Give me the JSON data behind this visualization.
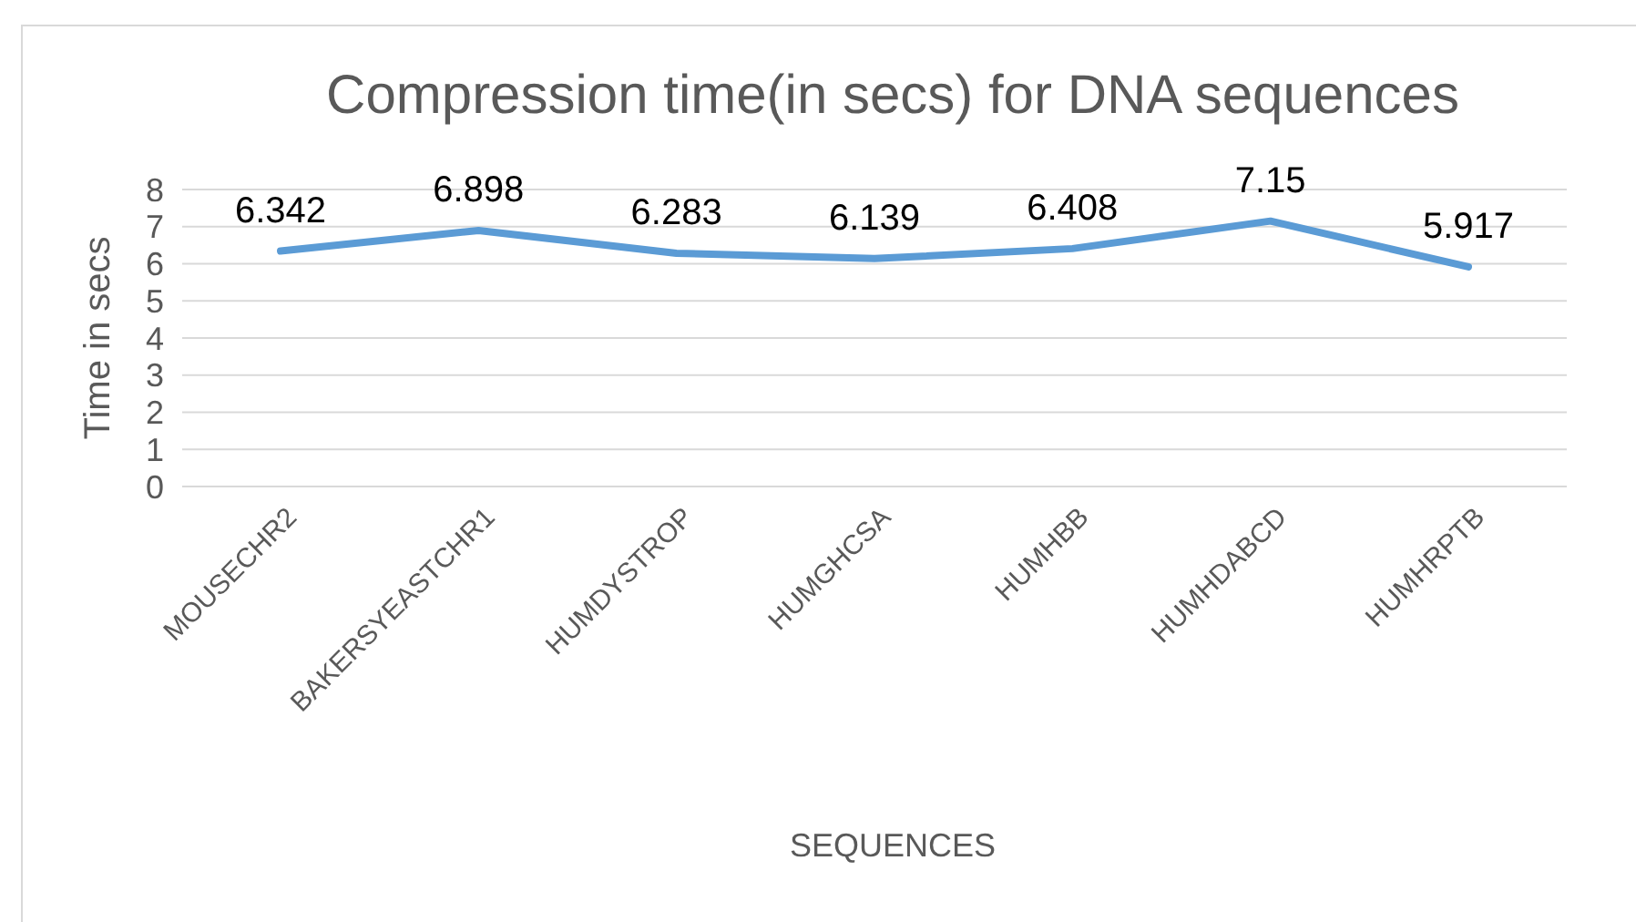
{
  "chart_data": {
    "type": "line",
    "title": "Compression time(in secs) for DNA sequences",
    "xlabel": "SEQUENCES",
    "ylabel": "Time in secs",
    "categories": [
      "MOUSECHR2",
      "BAKERSYEASTCHR1",
      "HUMDYSTROP",
      "HUMGHCSA",
      "HUMHBB",
      "HUMHDABCD",
      "HUMHRPTB"
    ],
    "series": [
      {
        "color": "#5b9bd5",
        "values": [
          6.342,
          6.898,
          6.283,
          6.139,
          6.408,
          7.15,
          5.917
        ]
      }
    ],
    "ylim": [
      0,
      8
    ],
    "yticks": [
      0,
      1,
      2,
      3,
      4,
      5,
      6,
      7,
      8
    ],
    "grid": "y",
    "data_labels": true,
    "marker": "none",
    "line_style": "solid"
  }
}
